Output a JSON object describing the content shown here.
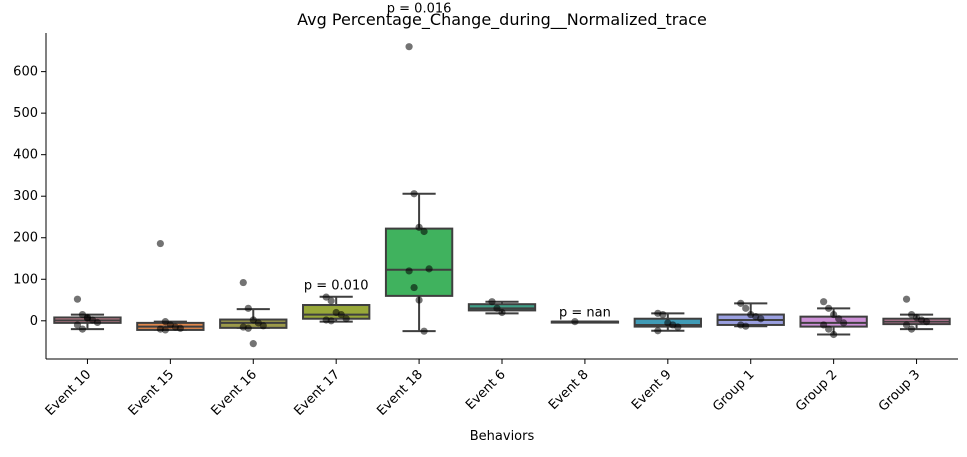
{
  "chart_data": {
    "type": "box",
    "title": "Avg Percentage_Change_during__Normalized_trace",
    "xlabel": "Behaviors",
    "ylabel": "",
    "ylim": [
      -92,
      693
    ],
    "yticks": [
      0,
      100,
      200,
      300,
      400,
      500,
      600
    ],
    "categories": [
      "Event 10",
      "Event 15",
      "Event 16",
      "Event 17",
      "Event 18",
      "Event 6",
      "Event 8",
      "Event 9",
      "Group 1",
      "Group 2",
      "Group 3"
    ],
    "colors": [
      "#d88a9a",
      "#e2884c",
      "#9c9a4a",
      "#98a839",
      "#40b25e",
      "#3e9e86",
      "#459c9a",
      "#409bb6",
      "#9a9fe0",
      "#cc8fd6",
      "#e08ab0"
    ],
    "boxes": [
      {
        "q1": -5,
        "median": 1,
        "q3": 8,
        "whisker_low": -20,
        "whisker_high": 15
      },
      {
        "q1": -22,
        "median": -14,
        "q3": -5,
        "whisker_low": -22,
        "whisker_high": -2
      },
      {
        "q1": -17,
        "median": -5,
        "q3": 3,
        "whisker_low": -17,
        "whisker_high": 28
      },
      {
        "q1": 5,
        "median": 15,
        "q3": 38,
        "whisker_low": -2,
        "whisker_high": 58
      },
      {
        "q1": 60,
        "median": 123,
        "q3": 222,
        "whisker_low": -25,
        "whisker_high": 306
      },
      {
        "q1": 25,
        "median": 30,
        "q3": 40,
        "whisker_low": 18,
        "whisker_high": 46
      },
      {
        "q1": -2,
        "median": -2,
        "q3": -2,
        "whisker_low": -2,
        "whisker_high": -2
      },
      {
        "q1": -14,
        "median": -10,
        "q3": 5,
        "whisker_low": -24,
        "whisker_high": 18
      },
      {
        "q1": -10,
        "median": 2,
        "q3": 15,
        "whisker_low": -13,
        "whisker_high": 42
      },
      {
        "q1": -14,
        "median": -5,
        "q3": 10,
        "whisker_low": -33,
        "whisker_high": 30
      },
      {
        "q1": -8,
        "median": -2,
        "q3": 5,
        "whisker_low": -20,
        "whisker_high": 15
      }
    ],
    "points": [
      [
        52,
        15,
        8,
        2,
        -4,
        -10,
        -20,
        6
      ],
      [
        186,
        -2,
        -10,
        -15,
        -18,
        -20,
        -22
      ],
      [
        92,
        30,
        2,
        -5,
        -12,
        -15,
        -18,
        -55
      ],
      [
        57,
        48,
        20,
        15,
        5,
        2,
        0
      ],
      [
        660,
        306,
        225,
        215,
        125,
        120,
        80,
        50,
        -25
      ],
      [
        46,
        30,
        20
      ],
      [
        -2
      ],
      [
        18,
        15,
        -5,
        -10,
        -15,
        -24
      ],
      [
        42,
        30,
        15,
        10,
        5,
        -10,
        -13
      ],
      [
        46,
        30,
        15,
        5,
        -5,
        -10,
        -20,
        -33
      ],
      [
        52,
        15,
        8,
        2,
        -2,
        -10,
        -20
      ]
    ],
    "annotations": [
      {
        "text": "p = 0.016",
        "category": "Event 18",
        "y": 738
      },
      {
        "text": "p = 0.010",
        "category": "Event 17",
        "y": 70
      },
      {
        "text": "p = nan",
        "category": "Event 8",
        "y": 5
      }
    ],
    "grid": false,
    "legend": "none"
  }
}
